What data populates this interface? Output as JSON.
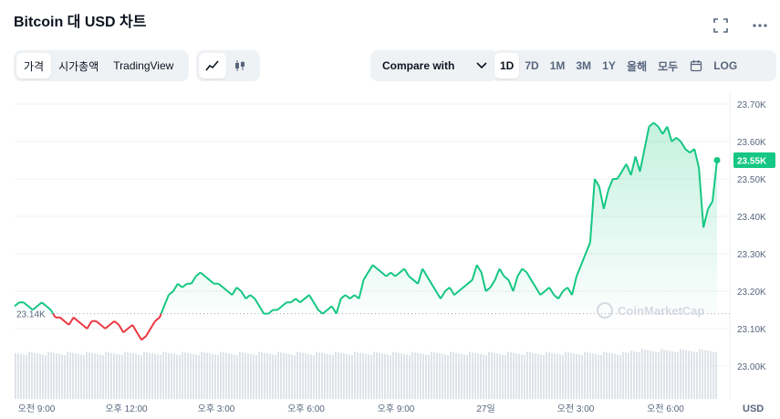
{
  "header": {
    "title": "Bitcoin 대 USD 차트"
  },
  "toolbar": {
    "chart_types": [
      "가격",
      "시가총액",
      "TradingView"
    ],
    "active_chart_type": "가격",
    "modes": [
      "line-chart-icon",
      "candlestick-icon"
    ],
    "active_mode": "line-chart-icon",
    "compare_label": "Compare with",
    "ranges": [
      "1D",
      "7D",
      "1M",
      "3M",
      "1Y",
      "올해",
      "모두"
    ],
    "active_range": "1D",
    "log_label": "LOG"
  },
  "colors": {
    "up": "#16c784",
    "down": "#ea3943",
    "badge": "#16c784"
  },
  "chart_data": {
    "type": "area",
    "y_ticks": [
      "23.70K",
      "23.60K",
      "23.50K",
      "23.40K",
      "23.30K",
      "23.20K",
      "23.10K",
      "23.00K"
    ],
    "y_tick_values": [
      23700,
      23600,
      23500,
      23400,
      23300,
      23200,
      23100,
      23000
    ],
    "ylim": [
      23000,
      23700
    ],
    "x_ticks": [
      "오전 9:00",
      "오후 12:00",
      "오후 3:00",
      "오후 6:00",
      "오후 9:00",
      "27일",
      "오전 3:00",
      "오전 6:00"
    ],
    "reference_price": 23140,
    "reference_label": "23.14K",
    "current_price": 23550,
    "current_label": "23.55K",
    "currency": "USD",
    "watermark": "CoinMarketCap",
    "series": [
      {
        "values": [
          23160,
          23170,
          23170,
          23160,
          23150,
          23160,
          23170,
          23160,
          23150,
          23130,
          23130,
          23120,
          23110,
          23130,
          23120,
          23110,
          23100,
          23120,
          23120,
          23110,
          23100,
          23110,
          23120,
          23110,
          23090,
          23100,
          23110,
          23090,
          23070,
          23080,
          23100,
          23120,
          23130,
          23160,
          23190,
          23200,
          23220,
          23210,
          23220,
          23220,
          23240,
          23250,
          23240,
          23230,
          23220,
          23220,
          23210,
          23200,
          23190,
          23210,
          23200,
          23180,
          23190,
          23180,
          23160,
          23140,
          23140,
          23150,
          23150,
          23160,
          23170,
          23170,
          23180,
          23170,
          23180,
          23190,
          23170,
          23150,
          23140,
          23150,
          23160,
          23140,
          23180,
          23190,
          23180,
          23190,
          23180,
          23230,
          23250,
          23270,
          23260,
          23250,
          23240,
          23250,
          23240,
          23250,
          23260,
          23240,
          23230,
          23220,
          23260,
          23240,
          23220,
          23200,
          23180,
          23200,
          23210,
          23190,
          23200,
          23210,
          23220,
          23230,
          23270,
          23250,
          23200,
          23210,
          23230,
          23260,
          23240,
          23230,
          23200,
          23240,
          23260,
          23250,
          23230,
          23210,
          23190,
          23200,
          23210,
          23190,
          23180,
          23200,
          23210,
          23190,
          23240,
          23270,
          23300,
          23330,
          23500,
          23480,
          23420,
          23470,
          23500,
          23500,
          23520,
          23540,
          23510,
          23560,
          23520,
          23580,
          23640,
          23650,
          23640,
          23620,
          23640,
          23600,
          23610,
          23600,
          23580,
          23570,
          23580,
          23530,
          23370,
          23420,
          23440,
          23550
        ]
      }
    ],
    "volume": "present"
  }
}
